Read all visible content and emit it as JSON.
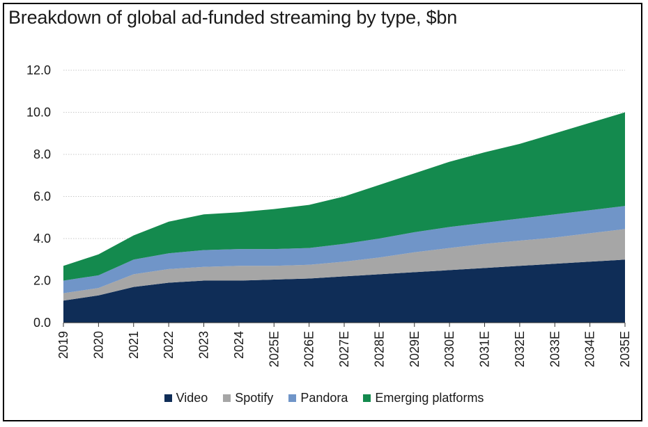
{
  "chart_data": {
    "type": "area",
    "title": "Breakdown of global ad-funded streaming by type, $bn",
    "xlabel": "",
    "ylabel": "",
    "ylim": [
      0,
      12
    ],
    "yticks": [
      "0.0",
      "2.0",
      "4.0",
      "6.0",
      "8.0",
      "10.0",
      "12.0"
    ],
    "grid": true,
    "stacked": true,
    "legend_position": "bottom",
    "categories": [
      "2019",
      "2020",
      "2021",
      "2022",
      "2023",
      "2024",
      "2025E",
      "2026E",
      "2027E",
      "2028E",
      "2029E",
      "2030E",
      "2031E",
      "2032E",
      "2033E",
      "2034E",
      "2035E"
    ],
    "series": [
      {
        "name": "Video",
        "color": "#0f2d57",
        "values": [
          1.05,
          1.3,
          1.7,
          1.9,
          2.0,
          2.0,
          2.05,
          2.1,
          2.2,
          2.3,
          2.4,
          2.5,
          2.6,
          2.7,
          2.8,
          2.9,
          3.0
        ]
      },
      {
        "name": "Spotify",
        "color": "#a6a6a6",
        "values": [
          0.35,
          0.35,
          0.6,
          0.65,
          0.65,
          0.7,
          0.65,
          0.65,
          0.7,
          0.8,
          0.95,
          1.05,
          1.15,
          1.2,
          1.25,
          1.35,
          1.45
        ]
      },
      {
        "name": "Pandora",
        "color": "#7095c8",
        "values": [
          0.6,
          0.6,
          0.7,
          0.75,
          0.8,
          0.8,
          0.8,
          0.8,
          0.85,
          0.9,
          0.95,
          1.0,
          1.0,
          1.05,
          1.1,
          1.1,
          1.1
        ]
      },
      {
        "name": "Emerging platforms",
        "color": "#148a4e",
        "values": [
          0.7,
          1.0,
          1.15,
          1.5,
          1.7,
          1.75,
          1.9,
          2.05,
          2.25,
          2.55,
          2.8,
          3.1,
          3.35,
          3.55,
          3.85,
          4.15,
          4.45
        ]
      }
    ]
  }
}
